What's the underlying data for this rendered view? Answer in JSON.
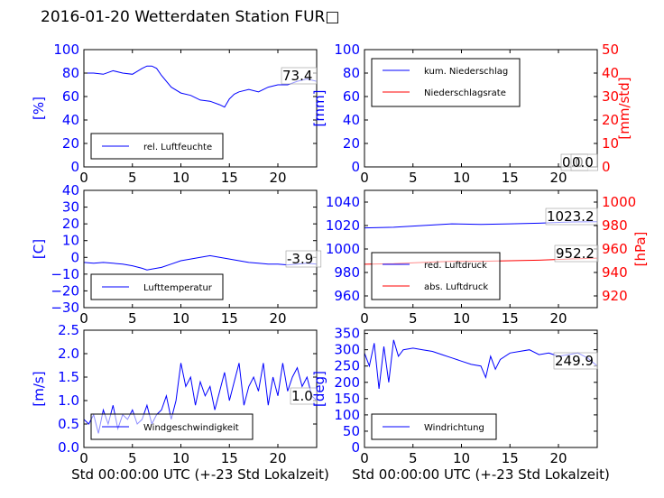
{
  "title": "2016-01-20 Wetterdaten Station FUR□",
  "colors": {
    "blue": "#0000ff",
    "red": "#ff0000",
    "black": "#000000"
  },
  "chart_data": [
    {
      "id": "humidity",
      "type": "line",
      "ylabel": "[%]",
      "ylim": [
        0,
        100
      ],
      "yticks": [
        0,
        20,
        40,
        60,
        80,
        100
      ],
      "xlim": [
        0,
        24
      ],
      "xticks": [
        0,
        5,
        10,
        15,
        20
      ],
      "annotation": "73.4",
      "legend": "lower left",
      "series": [
        {
          "name": "rel. Luftfeuchte",
          "color": "#0000ff",
          "x": [
            0,
            1,
            2,
            3,
            4,
            5,
            6,
            6.5,
            7,
            7.5,
            8,
            9,
            10,
            11,
            12,
            13,
            14,
            14.5,
            15,
            15.5,
            16,
            17,
            18,
            19,
            20,
            21,
            22,
            23,
            24
          ],
          "y": [
            80,
            80,
            79,
            82,
            80,
            79,
            84,
            86,
            86,
            84,
            78,
            68,
            63,
            61,
            57,
            56,
            53,
            51,
            58,
            62,
            64,
            66,
            64,
            68,
            70,
            70,
            73,
            75,
            73
          ]
        }
      ]
    },
    {
      "id": "precip",
      "type": "line",
      "ylabel": "[mm]",
      "ylim": [
        0,
        100
      ],
      "yticks": [
        0,
        20,
        40,
        60,
        80,
        100
      ],
      "ylabel2": "[mm/std]",
      "ylim2": [
        0,
        50
      ],
      "yticks2": [
        0,
        10,
        20,
        30,
        40,
        50
      ],
      "xlim": [
        0,
        24
      ],
      "xticks": [
        0,
        5,
        10,
        15,
        20
      ],
      "annotations": [
        "0.0",
        "0.0"
      ],
      "legend": "upper left",
      "series": [
        {
          "name": "kum. Niederschlag",
          "color": "#0000ff",
          "axis": "left",
          "x": [
            0,
            24
          ],
          "y": [
            0,
            0
          ]
        },
        {
          "name": "Niederschlagsrate",
          "color": "#ff0000",
          "axis": "right",
          "x": [
            0,
            24
          ],
          "y": [
            0,
            0
          ]
        }
      ]
    },
    {
      "id": "temperature",
      "type": "line",
      "ylabel": "[C]",
      "ylim": [
        -30,
        40
      ],
      "yticks": [
        -30,
        -20,
        -10,
        0,
        10,
        20,
        30,
        40
      ],
      "xlim": [
        0,
        24
      ],
      "xticks": [
        0,
        5,
        10,
        15,
        20
      ],
      "annotation": "-3.9",
      "legend": "lower left",
      "series": [
        {
          "name": "Lufttemperatur",
          "color": "#0000ff",
          "x": [
            0,
            1,
            2,
            3,
            4,
            5,
            6,
            6.5,
            7,
            8,
            9,
            10,
            11,
            12,
            13,
            14,
            15,
            16,
            17,
            18,
            19,
            20,
            21,
            22,
            23,
            24
          ],
          "y": [
            -3,
            -3.5,
            -3,
            -3.5,
            -4,
            -5,
            -6.5,
            -7.5,
            -7,
            -6,
            -4,
            -2,
            -1,
            0,
            1,
            0,
            -1,
            -2,
            -3,
            -3.5,
            -4,
            -4,
            -4.5,
            -4,
            -3.5,
            -4
          ]
        }
      ]
    },
    {
      "id": "pressure",
      "type": "line",
      "ylim": [
        950,
        1050
      ],
      "yticks": [
        960,
        980,
        1000,
        1020,
        1040
      ],
      "ylabel2": "[hPa]",
      "ylim2": [
        910,
        1010
      ],
      "yticks2": [
        920,
        940,
        960,
        980,
        1000
      ],
      "xlim": [
        0,
        24
      ],
      "xticks": [
        0,
        5,
        10,
        15,
        20
      ],
      "annotations": [
        "1023.2",
        "952.2"
      ],
      "legend": "lower left",
      "series": [
        {
          "name": "red. Luftdruck",
          "color": "#0000ff",
          "axis": "left",
          "x": [
            0,
            3,
            6,
            9,
            12,
            15,
            18,
            21,
            24
          ],
          "y": [
            1018,
            1018.5,
            1020,
            1021.5,
            1021,
            1021.5,
            1022,
            1023,
            1023.2
          ]
        },
        {
          "name": "abs. Luftdruck",
          "color": "#ff0000",
          "axis": "right",
          "x": [
            0,
            3,
            6,
            9,
            12,
            15,
            18,
            21,
            24
          ],
          "y": [
            947,
            947.5,
            948.5,
            949.5,
            949.5,
            950,
            950.5,
            951.5,
            952.2
          ]
        }
      ]
    },
    {
      "id": "wind-speed",
      "type": "line",
      "ylabel": "[m/s]",
      "ylim": [
        0,
        2.5
      ],
      "yticks": [
        0.0,
        0.5,
        1.0,
        1.5,
        2.0,
        2.5
      ],
      "xlim": [
        0,
        24
      ],
      "xticks": [
        0,
        5,
        10,
        15,
        20
      ],
      "xlabel": "Std 00:00:00 UTC (+-23 Std Lokalzeit)",
      "annotation": "1.0",
      "legend": "lower center",
      "series": [
        {
          "name": "Windgeschwindigkeit",
          "color": "#0000ff",
          "x": [
            0,
            0.5,
            1,
            1.5,
            2,
            2.5,
            3,
            3.5,
            4,
            4.5,
            5,
            5.5,
            6,
            6.5,
            7,
            7.5,
            8,
            8.5,
            9,
            9.5,
            10,
            10.5,
            11,
            11.5,
            12,
            12.5,
            13,
            13.5,
            14,
            14.5,
            15,
            15.5,
            16,
            16.5,
            17,
            17.5,
            18,
            18.5,
            19,
            19.5,
            20,
            20.5,
            21,
            21.5,
            22,
            22.5,
            23,
            23.5,
            24
          ],
          "y": [
            0.6,
            0.5,
            0.7,
            0.3,
            0.8,
            0.5,
            0.9,
            0.4,
            0.7,
            0.6,
            0.8,
            0.5,
            0.6,
            0.9,
            0.5,
            0.7,
            0.8,
            1.1,
            0.6,
            1.0,
            1.8,
            1.3,
            1.5,
            0.9,
            1.4,
            1.1,
            1.3,
            0.8,
            1.2,
            1.6,
            1.0,
            1.4,
            1.8,
            0.9,
            1.3,
            1.5,
            1.2,
            1.8,
            0.9,
            1.5,
            1.1,
            1.8,
            1.2,
            1.5,
            1.7,
            1.3,
            1.5,
            1.1,
            1.0
          ]
        }
      ]
    },
    {
      "id": "wind-direction",
      "type": "line",
      "ylabel": "[deg]",
      "ylim": [
        0,
        360
      ],
      "yticks": [
        0,
        50,
        100,
        150,
        200,
        250,
        300,
        350
      ],
      "xlim": [
        0,
        24
      ],
      "xticks": [
        0,
        5,
        10,
        15,
        20
      ],
      "xlabel": "Std 00:00:00 UTC (+-23 Std Lokalzeit)",
      "annotation": "249.9",
      "legend": "lower left",
      "series": [
        {
          "name": "Windrichtung",
          "color": "#0000ff",
          "x": [
            0,
            0.5,
            1,
            1.5,
            2,
            2.5,
            3,
            3.5,
            4,
            5,
            6,
            7,
            8,
            9,
            10,
            11,
            12,
            12.5,
            13,
            13.5,
            14,
            15,
            16,
            17,
            18,
            19,
            20,
            21,
            22,
            23,
            24
          ],
          "y": [
            290,
            250,
            320,
            180,
            310,
            200,
            330,
            280,
            300,
            305,
            300,
            295,
            285,
            275,
            265,
            255,
            250,
            215,
            280,
            240,
            270,
            290,
            295,
            300,
            285,
            290,
            280,
            285,
            290,
            275,
            250
          ]
        }
      ]
    }
  ]
}
